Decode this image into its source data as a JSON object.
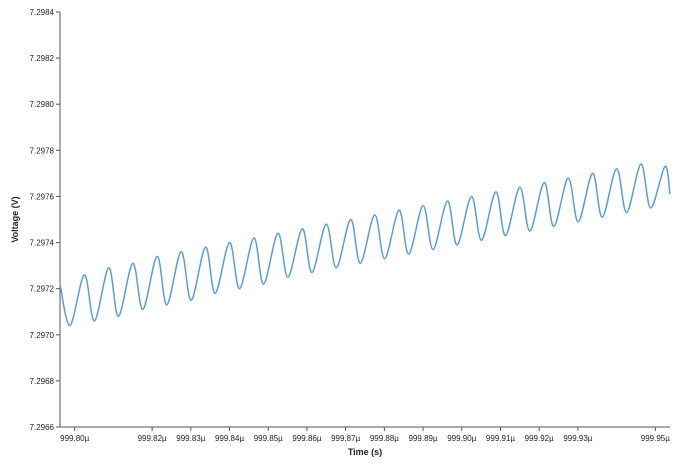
{
  "colors": {
    "background": "#ffffff",
    "axis": "#555555",
    "tick": "#555555",
    "series": "#5a9fd4",
    "text": "#222222"
  },
  "chart_data": {
    "type": "line",
    "title": "",
    "xlabel": "Time (s)",
    "ylabel": "Voltage (V)",
    "xlim": [
      999.7962,
      999.9538
    ],
    "ylim": [
      7.2966,
      7.2984
    ],
    "grid": false,
    "legend": "none",
    "x_unit_suffix": "µ",
    "yticks": [
      7.2966,
      7.2968,
      7.297,
      7.2972,
      7.2974,
      7.2976,
      7.2978,
      7.298,
      7.2982,
      7.2984
    ],
    "ytick_labels": [
      "7.2966",
      "7.2968",
      "7.2970",
      "7.2972",
      "7.2974",
      "7.2976",
      "7.2978",
      "7.2980",
      "7.2982",
      "7.2984"
    ],
    "xticks": [
      999.8,
      999.82,
      999.83,
      999.84,
      999.85,
      999.86,
      999.87,
      999.88,
      999.89,
      999.9,
      999.91,
      999.92,
      999.93,
      999.95
    ],
    "xtick_labels": [
      "999.80µ",
      "999.82µ",
      "999.83µ",
      "999.84µ",
      "999.85µ",
      "999.86µ",
      "999.87µ",
      "999.88µ",
      "999.89µ",
      "999.90µ",
      "999.91µ",
      "999.92µ",
      "999.93µ",
      "999.95µ"
    ],
    "series": [
      {
        "x": [
          999.7962,
          999.7988,
          999.8025,
          999.8051,
          999.8088,
          999.8113,
          999.815,
          999.8176,
          999.8213,
          999.8238,
          999.8275,
          999.8301,
          999.8338,
          999.8363,
          999.84,
          999.8426,
          999.8463,
          999.8488,
          999.8525,
          999.8551,
          999.8588,
          999.8613,
          999.865,
          999.8676,
          999.8713,
          999.8738,
          999.8775,
          999.8801,
          999.8838,
          999.8863,
          999.89,
          999.8926,
          999.8963,
          999.8988,
          999.9025,
          999.9051,
          999.9088,
          999.9113,
          999.915,
          999.9176,
          999.9213,
          999.9238,
          999.9275,
          999.9301,
          999.9338,
          999.9363,
          999.94,
          999.9426,
          999.9463,
          999.9488,
          999.9525,
          999.9538
        ],
        "y": [
          7.29722,
          7.29704,
          7.29726,
          7.29706,
          7.29729,
          7.29708,
          7.29731,
          7.29711,
          7.29734,
          7.29713,
          7.29736,
          7.29715,
          7.29738,
          7.29718,
          7.2974,
          7.2972,
          7.29742,
          7.29722,
          7.29744,
          7.29725,
          7.29746,
          7.29727,
          7.29748,
          7.29729,
          7.2975,
          7.29731,
          7.29752,
          7.29733,
          7.29754,
          7.29735,
          7.29756,
          7.29737,
          7.29758,
          7.29739,
          7.2976,
          7.29741,
          7.29762,
          7.29743,
          7.29764,
          7.29745,
          7.29766,
          7.29747,
          7.29768,
          7.29749,
          7.2977,
          7.29751,
          7.29772,
          7.29753,
          7.29774,
          7.29755,
          7.29773,
          7.29761
        ]
      }
    ]
  }
}
